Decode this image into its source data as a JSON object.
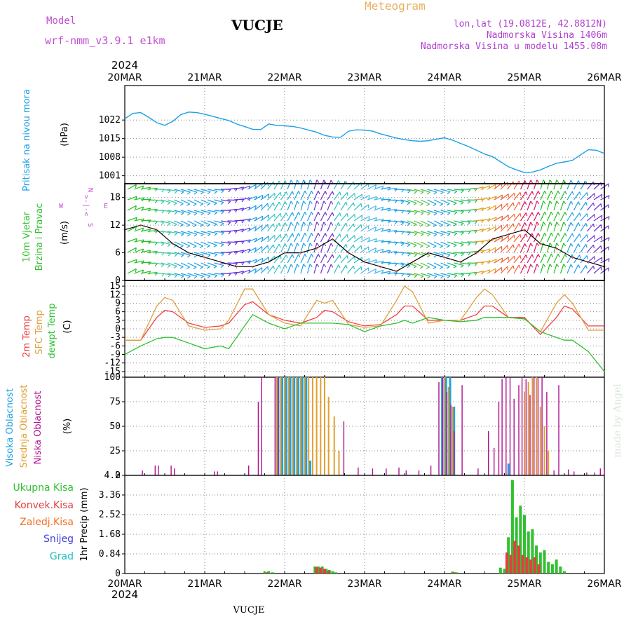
{
  "header": {
    "model_label": "Model",
    "model_name": "wrf-nmm_v3.9.1  e1km",
    "station": "VUCJE",
    "meteogram_label": "Meteogram",
    "lonlat": "lon,lat (19.0812E, 42.8812N)",
    "elevation": "Nadmorska Visina 1406m",
    "model_elevation": "Nadmorska Visina u modelu 1455.08m"
  },
  "footer": {
    "station": "VUCJE"
  },
  "watermark": "made by Angel",
  "colors": {
    "pressure": "#1aa0e6",
    "temp2m": "#f04040",
    "sfc": "#e0a040",
    "dewpt": "#30c030",
    "total_precip": "#30c030",
    "conv_precip": "#e04040",
    "frozen_precip": "#f07020",
    "snow": "#4040e0",
    "hail": "#20c0c0",
    "high_cloud": "#20a0e0",
    "mid_cloud": "#e0a030",
    "low_cloud": "#b01090",
    "model_title": "#c050d0",
    "meteogram_title": "#e8b060",
    "info_text": "#b040d0"
  },
  "chart_data": [
    {
      "type": "line",
      "title": "Pritisak na nivou mora",
      "ylabel": "(hPa)",
      "ylim": [
        998,
        1035
      ],
      "yticks": [
        "1022",
        "1015",
        "1008",
        "1001"
      ],
      "ytick_values": [
        1022,
        1015,
        1008,
        1001
      ],
      "x_days": [
        "20MAR",
        "21MAR",
        "22MAR",
        "23MAR",
        "24MAR",
        "25MAR",
        "26MAR"
      ],
      "x_year": "2024",
      "x": [
        0,
        0.1,
        0.2,
        0.3,
        0.4,
        0.5,
        0.6,
        0.7,
        0.8,
        0.9,
        1.0,
        1.1,
        1.2,
        1.3,
        1.4,
        1.5,
        1.6,
        1.7,
        1.8,
        1.9,
        2.0,
        2.1,
        2.2,
        2.3,
        2.4,
        2.5,
        2.6,
        2.7,
        2.8,
        2.9,
        3.0,
        3.1,
        3.2,
        3.3,
        3.4,
        3.5,
        3.6,
        3.7,
        3.8,
        3.9,
        4.0,
        4.1,
        4.2,
        4.3,
        4.4,
        4.5,
        4.6,
        4.7,
        4.8,
        4.9,
        5.0,
        5.1,
        5.2,
        5.3,
        5.4,
        5.5,
        5.6,
        5.7,
        5.8,
        5.9,
        6.0
      ],
      "y": [
        1022.5,
        1024.5,
        1024.8,
        1023,
        1021,
        1020,
        1021.5,
        1024,
        1025,
        1024.8,
        1024.2,
        1023.4,
        1022.6,
        1021.8,
        1020.5,
        1019.5,
        1018.5,
        1018.4,
        1020.5,
        1020,
        1019.8,
        1019.6,
        1019,
        1018.2,
        1017.4,
        1016.2,
        1015.6,
        1015.5,
        1017.8,
        1018.3,
        1018.2,
        1017.8,
        1016.8,
        1016,
        1015.2,
        1014.6,
        1014.2,
        1014,
        1014.2,
        1014.8,
        1015.3,
        1014.4,
        1013.2,
        1012,
        1010.6,
        1009.2,
        1008.2,
        1006.3,
        1004.4,
        1003.2,
        1002.2,
        1002.4,
        1003.2,
        1004.5,
        1005.7,
        1006.2,
        1006.8,
        1008.8,
        1010.8,
        1010.6,
        1009.4
      ]
    },
    {
      "type": "line",
      "title": "10m Vjetar Brzina i Pravac",
      "ylabel": "(m/s)",
      "ylim": [
        0,
        21
      ],
      "yticks": [
        "18",
        "12",
        "6",
        "0"
      ],
      "ytick_values": [
        18,
        12,
        6,
        0
      ],
      "direction_labels": {
        "n": "N",
        "s": "S",
        "w": "W",
        "e": "E"
      },
      "x": [
        0,
        0.2,
        0.4,
        0.6,
        0.8,
        1.0,
        1.2,
        1.4,
        1.6,
        1.8,
        2.0,
        2.2,
        2.4,
        2.6,
        2.8,
        3.0,
        3.2,
        3.4,
        3.6,
        3.8,
        4.0,
        4.2,
        4.4,
        4.6,
        4.8,
        5.0,
        5.2,
        5.4,
        5.6,
        5.8,
        6.0
      ],
      "y": [
        11,
        12,
        11,
        8,
        6,
        5,
        4,
        3,
        3,
        4,
        6,
        6,
        7,
        9,
        6,
        4,
        3,
        2,
        4,
        6,
        5,
        4,
        6,
        9,
        10,
        11,
        8,
        7,
        5,
        4,
        3
      ],
      "barb_colors_by_time": [
        "#20c020",
        "#40c8a0",
        "#1aa0e6",
        "#1aa0e6",
        "#6030e0",
        "#1aa0e6",
        "#30c0c0",
        "#1aa0e6",
        "#7030d0",
        "#30c0c0",
        "#40b8e8",
        "#1aa0e6",
        "#50c040",
        "#1aa0e6",
        "#20c060",
        "#e0a020",
        "#f06030",
        "#e01060",
        "#20c020",
        "#1aa0e6",
        "#7030d0"
      ]
    },
    {
      "type": "line",
      "title": "2m Temp / SFC Temp / dewpt Temp",
      "ylabel": "(C)",
      "ylim": [
        -17,
        17
      ],
      "yticks": [
        "15",
        "12",
        "9",
        "6",
        "3",
        "0",
        "-3",
        "-6",
        "-9",
        "-12",
        "-15"
      ],
      "ytick_values": [
        15,
        12,
        9,
        6,
        3,
        0,
        -3,
        -6,
        -9,
        -12,
        -15
      ],
      "series": [
        {
          "name": "2m Temp",
          "x": [
            0,
            0.2,
            0.4,
            0.5,
            0.6,
            0.8,
            1.0,
            1.2,
            1.3,
            1.5,
            1.6,
            1.8,
            2.0,
            2.2,
            2.4,
            2.5,
            2.6,
            2.8,
            3.0,
            3.2,
            3.4,
            3.5,
            3.6,
            3.8,
            4.0,
            4.2,
            4.4,
            4.5,
            4.6,
            4.8,
            5.0,
            5.2,
            5.4,
            5.5,
            5.6,
            5.8,
            6.0
          ],
          "y": [
            -4,
            -4,
            4,
            6.5,
            6,
            2,
            0.5,
            1,
            2,
            8.5,
            9.5,
            5,
            3,
            2,
            4,
            6.5,
            6,
            2.5,
            1,
            1.5,
            5,
            8,
            8,
            3,
            3,
            3,
            5,
            8,
            8,
            4,
            4,
            -2,
            4,
            8,
            7,
            1,
            1
          ]
        },
        {
          "name": "SFC Temp",
          "x": [
            0,
            0.2,
            0.4,
            0.5,
            0.6,
            0.8,
            1.0,
            1.2,
            1.3,
            1.5,
            1.6,
            1.8,
            2.0,
            2.2,
            2.4,
            2.5,
            2.6,
            2.8,
            3.0,
            3.2,
            3.4,
            3.5,
            3.6,
            3.8,
            4.0,
            4.2,
            4.4,
            4.5,
            4.6,
            4.8,
            5.0,
            5.2,
            5.4,
            5.5,
            5.6,
            5.8,
            6.0
          ],
          "y": [
            -4,
            -4,
            8,
            11,
            10,
            1,
            -0.5,
            0,
            3,
            14,
            14,
            5,
            2,
            1,
            10,
            9,
            10,
            1.5,
            0.5,
            1,
            10,
            15,
            13,
            2,
            3,
            3,
            11,
            14,
            12,
            4,
            3.5,
            -1,
            9,
            12,
            9,
            -0.5,
            -0.5
          ]
        },
        {
          "name": "dewpt Temp",
          "x": [
            0,
            0.2,
            0.4,
            0.5,
            0.6,
            0.8,
            1.0,
            1.2,
            1.3,
            1.5,
            1.6,
            1.8,
            2.0,
            2.2,
            2.4,
            2.5,
            2.6,
            2.8,
            3.0,
            3.2,
            3.4,
            3.5,
            3.6,
            3.8,
            4.0,
            4.2,
            4.4,
            4.5,
            4.6,
            4.8,
            5.0,
            5.2,
            5.4,
            5.5,
            5.6,
            5.8,
            6.0
          ],
          "y": [
            -9,
            -6,
            -3.5,
            -3,
            -3,
            -5,
            -7,
            -6,
            -7,
            1,
            5,
            2,
            0,
            2,
            2,
            2,
            2,
            1.5,
            -1,
            1,
            2,
            3,
            2,
            4,
            3,
            2.5,
            3,
            4,
            4,
            4,
            3.5,
            -1,
            -3,
            -4,
            -4,
            -8,
            -15
          ]
        }
      ]
    },
    {
      "type": "bar",
      "title": "Visoka Oblacnost / Srednja Oblacnost / Niska Oblacnost",
      "ylabel": "(%)",
      "ylim": [
        0,
        100
      ],
      "yticks": [
        "100",
        "75",
        "50",
        "25",
        "0"
      ],
      "ytick_values": [
        100,
        75,
        50,
        25,
        0
      ],
      "series": [
        {
          "name": "Visoka Oblacnost",
          "x": [
            1.92,
            1.97,
            2.02,
            2.07,
            2.12,
            2.17,
            2.22,
            2.27,
            2.32,
            3.97,
            4.02,
            4.07,
            4.12,
            4.8
          ],
          "y": [
            100,
            100,
            100,
            100,
            100,
            100,
            100,
            100,
            15,
            100,
            100,
            100,
            70,
            12
          ]
        },
        {
          "name": "Srednja Oblacnost",
          "x": [
            1.9,
            1.95,
            2.0,
            2.05,
            2.1,
            2.15,
            2.2,
            2.25,
            2.3,
            2.35,
            2.4,
            2.45,
            2.5,
            2.55,
            2.62,
            2.68,
            4.0,
            4.05,
            4.1,
            5.0,
            5.05,
            5.1,
            5.15,
            5.2,
            5.25,
            5.3
          ],
          "y": [
            100,
            100,
            100,
            100,
            100,
            100,
            100,
            100,
            100,
            100,
            100,
            100,
            100,
            80,
            60,
            25,
            100,
            90,
            70,
            85,
            95,
            100,
            100,
            70,
            50,
            25
          ]
        },
        {
          "name": "Niska Oblacnost",
          "x": [
            0.22,
            0.38,
            0.42,
            0.58,
            0.62,
            1.12,
            1.16,
            1.55,
            1.67,
            1.71,
            1.88,
            1.92,
            2.74,
            2.92,
            3.1,
            3.27,
            3.43,
            3.52,
            3.68,
            3.83,
            3.93,
            3.98,
            4.03,
            4.08,
            4.12,
            4.22,
            4.42,
            4.55,
            4.62,
            4.68,
            4.72,
            4.77,
            4.82,
            4.87,
            4.93,
            4.97,
            5.02,
            5.07,
            5.12,
            5.17,
            5.22,
            5.28,
            5.37,
            5.43,
            5.55,
            5.62,
            5.78,
            5.88,
            5.95,
            6.0
          ],
          "y": [
            5,
            10,
            10,
            10,
            7,
            4,
            4,
            10,
            75,
            100,
            100,
            100,
            55,
            8,
            7,
            7,
            8,
            5,
            5,
            10,
            95,
            100,
            85,
            72,
            45,
            92,
            7,
            45,
            28,
            75,
            98,
            100,
            100,
            78,
            92,
            100,
            98,
            82,
            100,
            100,
            100,
            85,
            5,
            92,
            6,
            4,
            3,
            3,
            7,
            5
          ]
        }
      ]
    },
    {
      "type": "bar",
      "title": "1hr Precip",
      "ylabel": "1hr Precip (mm)",
      "ylim": [
        0,
        4.2
      ],
      "yticks": [
        "4.2",
        "3.36",
        "2.52",
        "1.68",
        "0.84",
        "0"
      ],
      "ytick_values": [
        4.2,
        3.36,
        2.52,
        1.68,
        0.84,
        0
      ],
      "legend": [
        "Ukupna Kisa",
        "Konvek.Kisa",
        "Zaledj.Kisa",
        "Snijeg",
        "Grad"
      ],
      "series": [
        {
          "name": "Ukupna Kisa",
          "x": [
            1.75,
            1.8,
            1.85,
            2.38,
            2.42,
            2.47,
            2.52,
            2.56,
            2.6,
            2.64,
            4.1,
            4.15,
            4.7,
            4.75,
            4.8,
            4.85,
            4.9,
            4.95,
            5.0,
            5.05,
            5.1,
            5.15,
            5.2,
            5.25,
            5.3,
            5.35,
            5.4,
            5.45,
            5.5
          ],
          "y": [
            0.08,
            0.1,
            0.05,
            0.3,
            0.3,
            0.3,
            0.2,
            0.15,
            0.1,
            0.05,
            0.08,
            0.05,
            0.25,
            0.2,
            1.55,
            4.0,
            2.4,
            2.9,
            2.5,
            1.8,
            1.9,
            1.2,
            0.9,
            1.0,
            0.5,
            0.4,
            0.6,
            0.3,
            0.1
          ]
        },
        {
          "name": "Konvek.Kisa",
          "x": [
            1.78,
            2.4,
            2.45,
            2.5,
            2.55,
            4.12,
            4.78,
            4.83,
            4.88,
            4.93,
            4.98,
            5.03,
            5.08,
            5.13,
            5.18
          ],
          "y": [
            0.05,
            0.28,
            0.25,
            0.2,
            0.12,
            0.05,
            0.9,
            0.8,
            1.4,
            1.2,
            0.8,
            0.7,
            0.6,
            0.7,
            0.4
          ]
        }
      ]
    }
  ]
}
